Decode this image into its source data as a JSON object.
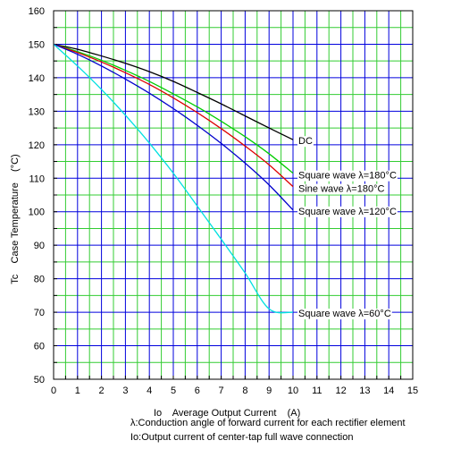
{
  "chart_data": {
    "type": "line",
    "xlabel": "Io    Average Output Current    (A)",
    "ylabel": "Tc    Case Temperature    (°C)",
    "xlim": [
      0,
      15
    ],
    "ylim": [
      50,
      160
    ],
    "x_ticks": [
      0,
      1,
      2,
      3,
      4,
      5,
      6,
      7,
      8,
      9,
      10,
      11,
      12,
      13,
      14,
      15
    ],
    "y_ticks": [
      50,
      60,
      70,
      80,
      90,
      100,
      110,
      120,
      130,
      140,
      150,
      160
    ],
    "grid": true,
    "grid_colors": {
      "major": "#0000dd",
      "minor": "#33cc33"
    },
    "series": [
      {
        "name": "DC",
        "color": "#000000",
        "x": [
          0,
          1,
          2,
          3,
          4,
          5,
          6,
          7,
          8,
          9,
          10
        ],
        "y": [
          150,
          148.5,
          146.5,
          144.3,
          141.8,
          138.9,
          135.6,
          132.2,
          128.6,
          125,
          121.5
        ]
      },
      {
        "name": "Square wave λ=180°C",
        "color": "#00cc00",
        "x": [
          0,
          1,
          2,
          3,
          4,
          5,
          6,
          7,
          8,
          9,
          10
        ],
        "y": [
          150,
          147.8,
          145.2,
          142.2,
          138.9,
          135.2,
          131.3,
          127,
          122.4,
          117.3,
          111.5
        ]
      },
      {
        "name": "Sine wave λ=180°C",
        "color": "#dd0000",
        "x": [
          0,
          1,
          2,
          3,
          4,
          5,
          6,
          7,
          8,
          9,
          10
        ],
        "y": [
          150,
          147.5,
          144.7,
          141.5,
          138,
          134,
          129.6,
          124.8,
          119.6,
          114,
          107.5
        ]
      },
      {
        "name": "Square wave λ=120°C",
        "color": "#0000cc",
        "x": [
          0,
          1,
          2,
          3,
          4,
          5,
          6,
          7,
          8,
          9,
          10
        ],
        "y": [
          150,
          147,
          143.5,
          139.6,
          135.4,
          130.8,
          125.8,
          120.4,
          114.5,
          108,
          100.5
        ]
      },
      {
        "name": "Square wave λ=60°C",
        "color": "#00e0e0",
        "x": [
          0,
          1,
          2,
          3,
          4,
          5,
          6,
          7,
          8,
          9,
          10
        ],
        "y": [
          150,
          143.5,
          136.5,
          128.8,
          120.5,
          111.5,
          101.7,
          91.8,
          81.7,
          71,
          70
        ]
      }
    ],
    "notes": [
      "λ:Conduction angle of forward current for each rectifier element",
      "Io:Output current of center-tap full wave connection"
    ]
  }
}
